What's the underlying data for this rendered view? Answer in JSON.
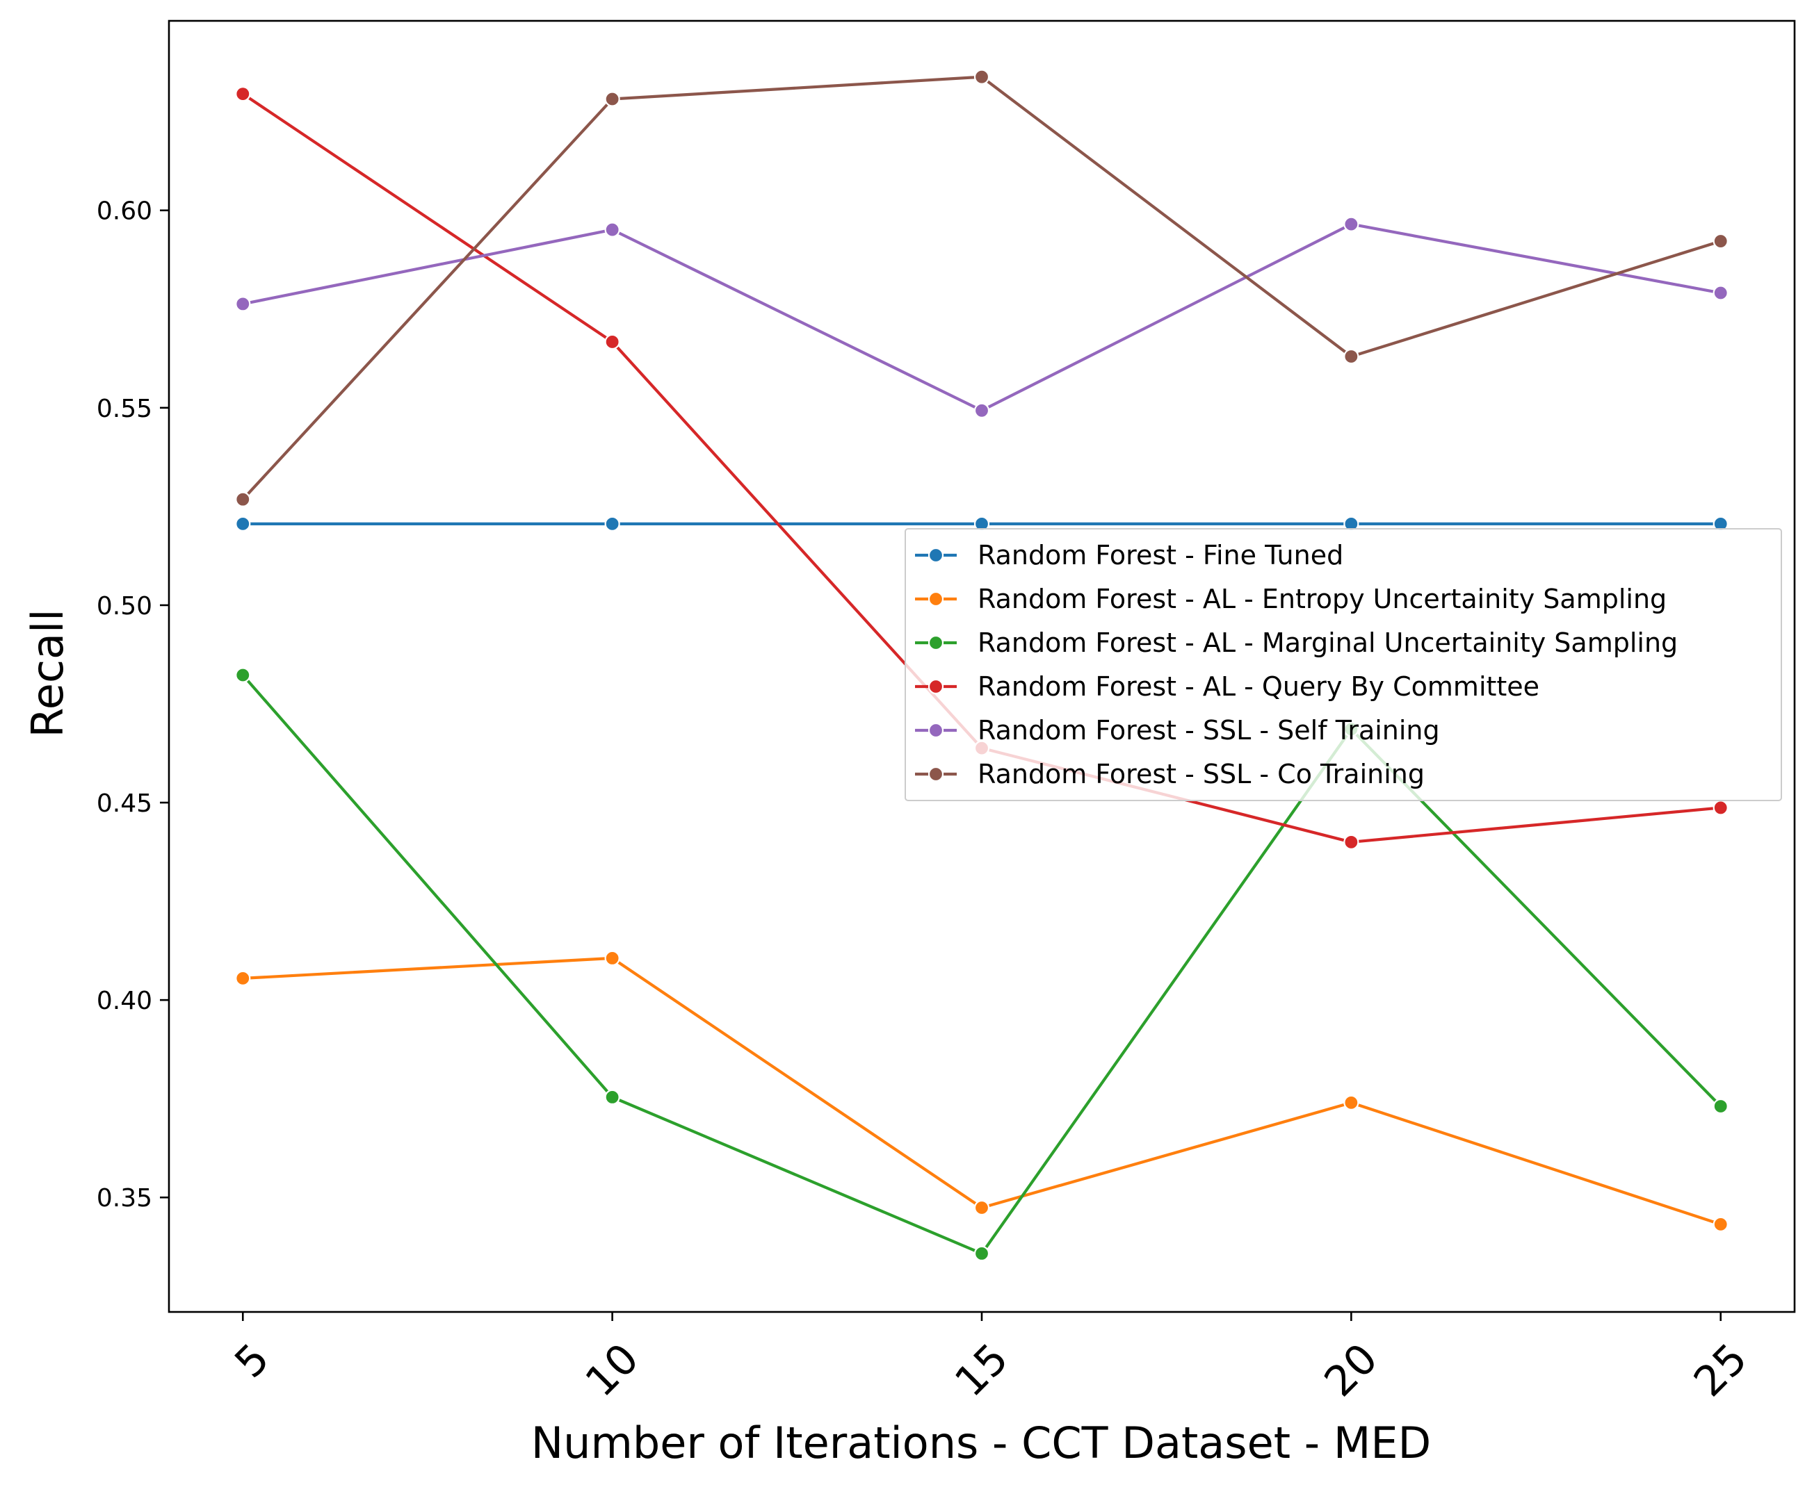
{
  "chart_data": {
    "type": "line",
    "title": "",
    "xlabel": "Number of Iterations - CCT Dataset - MED",
    "ylabel": "Recall",
    "x": [
      5,
      10,
      15,
      20,
      25
    ],
    "x_tick_labels": [
      "5",
      "10",
      "15",
      "20",
      "25"
    ],
    "y_ticks": [
      0.35,
      0.4,
      0.45,
      0.5,
      0.55,
      0.6
    ],
    "y_tick_labels": [
      "0.35",
      "0.40",
      "0.45",
      "0.50",
      "0.55",
      "0.60"
    ],
    "xlim": [
      4.0,
      26.0
    ],
    "ylim": [
      0.321,
      0.648
    ],
    "grid": false,
    "legend_position": "center-right",
    "series": [
      {
        "name": "Random Forest - Fine Tuned",
        "color": "#1f77b4",
        "values": [
          0.5206,
          0.5206,
          0.5206,
          0.5206,
          0.5206
        ]
      },
      {
        "name": "Random Forest - AL - Entropy Uncertainity Sampling",
        "color": "#ff7f0e",
        "values": [
          0.4055,
          0.4106,
          0.3474,
          0.374,
          0.3432
        ]
      },
      {
        "name": "Random Forest - AL - Marginal Uncertainity Sampling",
        "color": "#2ca02c",
        "values": [
          0.4823,
          0.3754,
          0.3358,
          0.4686,
          0.3731
        ]
      },
      {
        "name": "Random Forest - AL - Query By Committee",
        "color": "#d62728",
        "values": [
          0.6295,
          0.5667,
          0.4638,
          0.44,
          0.4487
        ]
      },
      {
        "name": "Random Forest - SSL - Self Training",
        "color": "#9467bd",
        "values": [
          0.5763,
          0.5951,
          0.5493,
          0.5965,
          0.5791
        ]
      },
      {
        "name": "Random Forest - SSL - Co Training",
        "color": "#8c564b",
        "values": [
          0.5268,
          0.6282,
          0.6338,
          0.563,
          0.5922
        ]
      }
    ]
  }
}
